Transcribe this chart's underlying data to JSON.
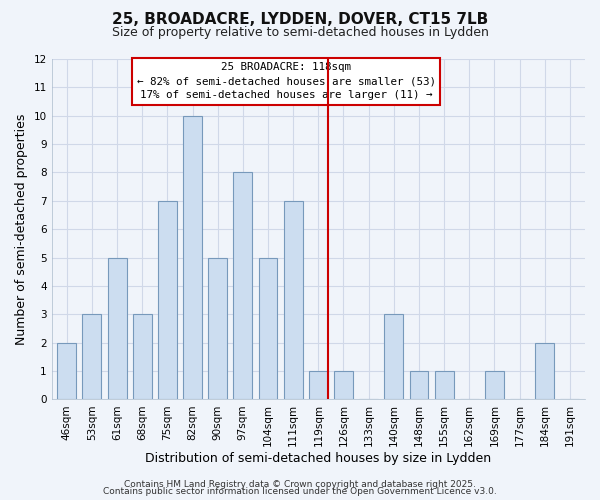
{
  "title": "25, BROADACRE, LYDDEN, DOVER, CT15 7LB",
  "subtitle": "Size of property relative to semi-detached houses in Lydden",
  "xlabel": "Distribution of semi-detached houses by size in Lydden",
  "ylabel": "Number of semi-detached properties",
  "bin_labels": [
    "46sqm",
    "53sqm",
    "61sqm",
    "68sqm",
    "75sqm",
    "82sqm",
    "90sqm",
    "97sqm",
    "104sqm",
    "111sqm",
    "119sqm",
    "126sqm",
    "133sqm",
    "140sqm",
    "148sqm",
    "155sqm",
    "162sqm",
    "169sqm",
    "177sqm",
    "184sqm",
    "191sqm"
  ],
  "bar_heights": [
    2,
    3,
    5,
    3,
    7,
    10,
    5,
    8,
    5,
    7,
    1,
    1,
    0,
    3,
    1,
    1,
    0,
    1,
    0,
    2,
    0
  ],
  "bar_color": "#ccddf0",
  "bar_edge_color": "#7799bb",
  "vline_x_index": 10,
  "vline_color": "#cc0000",
  "annotation_title": "25 BROADACRE: 118sqm",
  "annotation_line1": "← 82% of semi-detached houses are smaller (53)",
  "annotation_line2": "17% of semi-detached houses are larger (11) →",
  "annotation_box_color": "#ffffff",
  "annotation_box_edge": "#cc0000",
  "ylim": [
    0,
    12
  ],
  "yticks": [
    0,
    1,
    2,
    3,
    4,
    5,
    6,
    7,
    8,
    9,
    10,
    11,
    12
  ],
  "footer1": "Contains HM Land Registry data © Crown copyright and database right 2025.",
  "footer2": "Contains public sector information licensed under the Open Government Licence v3.0.",
  "background_color": "#f0f4fa",
  "plot_bg_color": "#f0f4fa",
  "grid_color": "#d0d8e8",
  "title_fontsize": 11,
  "subtitle_fontsize": 9,
  "axis_label_fontsize": 9,
  "tick_fontsize": 7.5,
  "footer_fontsize": 6.5,
  "bar_width": 0.75
}
